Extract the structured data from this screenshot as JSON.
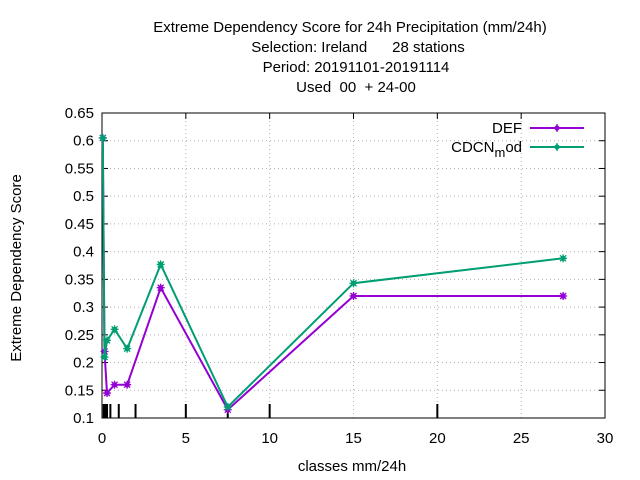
{
  "chart_data": {
    "type": "line",
    "title_lines": [
      "Extreme Dependency Score  for 24h Precipitation (mm/24h)",
      "Selection: Ireland      28 stations",
      "Period: 20191101-20191114",
      "Used  00  + 24-00"
    ],
    "xlabel": "classes mm/24h",
    "ylabel": "Extreme Dependency Score",
    "xlim": [
      0,
      30
    ],
    "ylim": [
      0.1,
      0.65
    ],
    "xticks": [
      0,
      5,
      10,
      15,
      20,
      25,
      30
    ],
    "yticks": [
      0.1,
      0.15,
      0.2,
      0.25,
      0.3,
      0.35,
      0.4,
      0.45,
      0.5,
      0.55,
      0.6,
      0.65
    ],
    "ytick_labels": [
      "0.1",
      "0.15",
      "0.2",
      "0.25",
      "0.3",
      "0.35",
      "0.4",
      "0.45",
      "0.5",
      "0.55",
      "0.6",
      "0.65"
    ],
    "class_marks": [
      0.1,
      0.2,
      0.3,
      0.5,
      1,
      2,
      5,
      7.5,
      10,
      20
    ],
    "grid": true,
    "legend_position": "top-right",
    "series": [
      {
        "name": "DEF",
        "color": "#9400d3",
        "x": [
          0.05,
          0.15,
          0.3,
          0.75,
          1.5,
          3.5,
          7.5,
          15,
          27.5
        ],
        "y": [
          0.605,
          0.22,
          0.145,
          0.16,
          0.16,
          0.335,
          0.115,
          0.32,
          0.32
        ]
      },
      {
        "name": "CDCN_mod",
        "label_main": "CDCN",
        "label_sub": "m",
        "label_rest": "od",
        "color": "#009e73",
        "x": [
          0.05,
          0.15,
          0.3,
          0.75,
          1.5,
          3.5,
          7.5,
          15,
          27.5
        ],
        "y": [
          0.605,
          0.21,
          0.24,
          0.26,
          0.225,
          0.377,
          0.12,
          0.343,
          0.388
        ]
      }
    ]
  }
}
